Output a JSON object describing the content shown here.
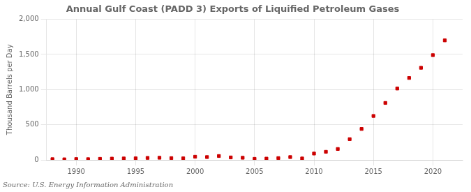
{
  "chart_data": {
    "type": "scatter",
    "title": "Annual Gulf Coast (PADD 3) Exports of Liquified Petroleum Gases",
    "ylabel": "Thousand Barrels per Day",
    "annotation": "Source: U.S. Energy Information Administration",
    "x": [
      1988,
      1989,
      1990,
      1991,
      1992,
      1993,
      1994,
      1995,
      1996,
      1997,
      1998,
      1999,
      2000,
      2001,
      2002,
      2003,
      2004,
      2005,
      2006,
      2007,
      2008,
      2009,
      2010,
      2011,
      2012,
      2013,
      2014,
      2015,
      2016,
      2017,
      2018,
      2019,
      2020,
      2021
    ],
    "values": [
      10,
      8,
      12,
      10,
      15,
      18,
      20,
      22,
      28,
      30,
      25,
      22,
      45,
      40,
      55,
      35,
      30,
      15,
      18,
      25,
      40,
      20,
      90,
      115,
      155,
      295,
      440,
      625,
      810,
      1015,
      1165,
      1310,
      1490,
      1700
    ],
    "color": "#cc0000",
    "marker": "square",
    "xlim": [
      1987.5,
      2022.5
    ],
    "xticks": [
      1990,
      1995,
      2000,
      2005,
      2010,
      2015,
      2020
    ],
    "ylim": [
      0,
      2000
    ],
    "yticks": [
      0,
      500,
      {
        "value": 1000,
        "label": "1,000"
      },
      {
        "value": 1500,
        "label": "1,500"
      },
      {
        "value": 2000,
        "label": "2,000"
      }
    ],
    "grid": true
  }
}
